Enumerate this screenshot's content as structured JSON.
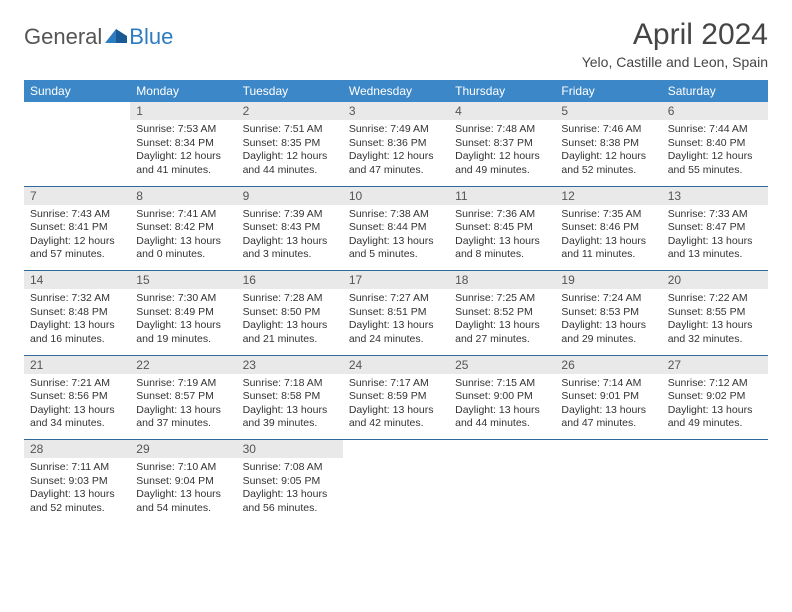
{
  "logo": {
    "text1": "General",
    "text2": "Blue"
  },
  "title": "April 2024",
  "subtitle": "Yelo, Castille and Leon, Spain",
  "colors": {
    "header_bg": "#3c87c7",
    "header_text": "#ffffff",
    "daynum_bg": "#e9e9e9",
    "rule": "#2e6aa0",
    "logo_blue": "#2e7cc0"
  },
  "weekdays": [
    "Sunday",
    "Monday",
    "Tuesday",
    "Wednesday",
    "Thursday",
    "Friday",
    "Saturday"
  ],
  "weeks": [
    [
      null,
      {
        "n": "1",
        "sr": "Sunrise: 7:53 AM",
        "ss": "Sunset: 8:34 PM",
        "d1": "Daylight: 12 hours",
        "d2": "and 41 minutes."
      },
      {
        "n": "2",
        "sr": "Sunrise: 7:51 AM",
        "ss": "Sunset: 8:35 PM",
        "d1": "Daylight: 12 hours",
        "d2": "and 44 minutes."
      },
      {
        "n": "3",
        "sr": "Sunrise: 7:49 AM",
        "ss": "Sunset: 8:36 PM",
        "d1": "Daylight: 12 hours",
        "d2": "and 47 minutes."
      },
      {
        "n": "4",
        "sr": "Sunrise: 7:48 AM",
        "ss": "Sunset: 8:37 PM",
        "d1": "Daylight: 12 hours",
        "d2": "and 49 minutes."
      },
      {
        "n": "5",
        "sr": "Sunrise: 7:46 AM",
        "ss": "Sunset: 8:38 PM",
        "d1": "Daylight: 12 hours",
        "d2": "and 52 minutes."
      },
      {
        "n": "6",
        "sr": "Sunrise: 7:44 AM",
        "ss": "Sunset: 8:40 PM",
        "d1": "Daylight: 12 hours",
        "d2": "and 55 minutes."
      }
    ],
    [
      {
        "n": "7",
        "sr": "Sunrise: 7:43 AM",
        "ss": "Sunset: 8:41 PM",
        "d1": "Daylight: 12 hours",
        "d2": "and 57 minutes."
      },
      {
        "n": "8",
        "sr": "Sunrise: 7:41 AM",
        "ss": "Sunset: 8:42 PM",
        "d1": "Daylight: 13 hours",
        "d2": "and 0 minutes."
      },
      {
        "n": "9",
        "sr": "Sunrise: 7:39 AM",
        "ss": "Sunset: 8:43 PM",
        "d1": "Daylight: 13 hours",
        "d2": "and 3 minutes."
      },
      {
        "n": "10",
        "sr": "Sunrise: 7:38 AM",
        "ss": "Sunset: 8:44 PM",
        "d1": "Daylight: 13 hours",
        "d2": "and 5 minutes."
      },
      {
        "n": "11",
        "sr": "Sunrise: 7:36 AM",
        "ss": "Sunset: 8:45 PM",
        "d1": "Daylight: 13 hours",
        "d2": "and 8 minutes."
      },
      {
        "n": "12",
        "sr": "Sunrise: 7:35 AM",
        "ss": "Sunset: 8:46 PM",
        "d1": "Daylight: 13 hours",
        "d2": "and 11 minutes."
      },
      {
        "n": "13",
        "sr": "Sunrise: 7:33 AM",
        "ss": "Sunset: 8:47 PM",
        "d1": "Daylight: 13 hours",
        "d2": "and 13 minutes."
      }
    ],
    [
      {
        "n": "14",
        "sr": "Sunrise: 7:32 AM",
        "ss": "Sunset: 8:48 PM",
        "d1": "Daylight: 13 hours",
        "d2": "and 16 minutes."
      },
      {
        "n": "15",
        "sr": "Sunrise: 7:30 AM",
        "ss": "Sunset: 8:49 PM",
        "d1": "Daylight: 13 hours",
        "d2": "and 19 minutes."
      },
      {
        "n": "16",
        "sr": "Sunrise: 7:28 AM",
        "ss": "Sunset: 8:50 PM",
        "d1": "Daylight: 13 hours",
        "d2": "and 21 minutes."
      },
      {
        "n": "17",
        "sr": "Sunrise: 7:27 AM",
        "ss": "Sunset: 8:51 PM",
        "d1": "Daylight: 13 hours",
        "d2": "and 24 minutes."
      },
      {
        "n": "18",
        "sr": "Sunrise: 7:25 AM",
        "ss": "Sunset: 8:52 PM",
        "d1": "Daylight: 13 hours",
        "d2": "and 27 minutes."
      },
      {
        "n": "19",
        "sr": "Sunrise: 7:24 AM",
        "ss": "Sunset: 8:53 PM",
        "d1": "Daylight: 13 hours",
        "d2": "and 29 minutes."
      },
      {
        "n": "20",
        "sr": "Sunrise: 7:22 AM",
        "ss": "Sunset: 8:55 PM",
        "d1": "Daylight: 13 hours",
        "d2": "and 32 minutes."
      }
    ],
    [
      {
        "n": "21",
        "sr": "Sunrise: 7:21 AM",
        "ss": "Sunset: 8:56 PM",
        "d1": "Daylight: 13 hours",
        "d2": "and 34 minutes."
      },
      {
        "n": "22",
        "sr": "Sunrise: 7:19 AM",
        "ss": "Sunset: 8:57 PM",
        "d1": "Daylight: 13 hours",
        "d2": "and 37 minutes."
      },
      {
        "n": "23",
        "sr": "Sunrise: 7:18 AM",
        "ss": "Sunset: 8:58 PM",
        "d1": "Daylight: 13 hours",
        "d2": "and 39 minutes."
      },
      {
        "n": "24",
        "sr": "Sunrise: 7:17 AM",
        "ss": "Sunset: 8:59 PM",
        "d1": "Daylight: 13 hours",
        "d2": "and 42 minutes."
      },
      {
        "n": "25",
        "sr": "Sunrise: 7:15 AM",
        "ss": "Sunset: 9:00 PM",
        "d1": "Daylight: 13 hours",
        "d2": "and 44 minutes."
      },
      {
        "n": "26",
        "sr": "Sunrise: 7:14 AM",
        "ss": "Sunset: 9:01 PM",
        "d1": "Daylight: 13 hours",
        "d2": "and 47 minutes."
      },
      {
        "n": "27",
        "sr": "Sunrise: 7:12 AM",
        "ss": "Sunset: 9:02 PM",
        "d1": "Daylight: 13 hours",
        "d2": "and 49 minutes."
      }
    ],
    [
      {
        "n": "28",
        "sr": "Sunrise: 7:11 AM",
        "ss": "Sunset: 9:03 PM",
        "d1": "Daylight: 13 hours",
        "d2": "and 52 minutes."
      },
      {
        "n": "29",
        "sr": "Sunrise: 7:10 AM",
        "ss": "Sunset: 9:04 PM",
        "d1": "Daylight: 13 hours",
        "d2": "and 54 minutes."
      },
      {
        "n": "30",
        "sr": "Sunrise: 7:08 AM",
        "ss": "Sunset: 9:05 PM",
        "d1": "Daylight: 13 hours",
        "d2": "and 56 minutes."
      },
      null,
      null,
      null,
      null
    ]
  ]
}
